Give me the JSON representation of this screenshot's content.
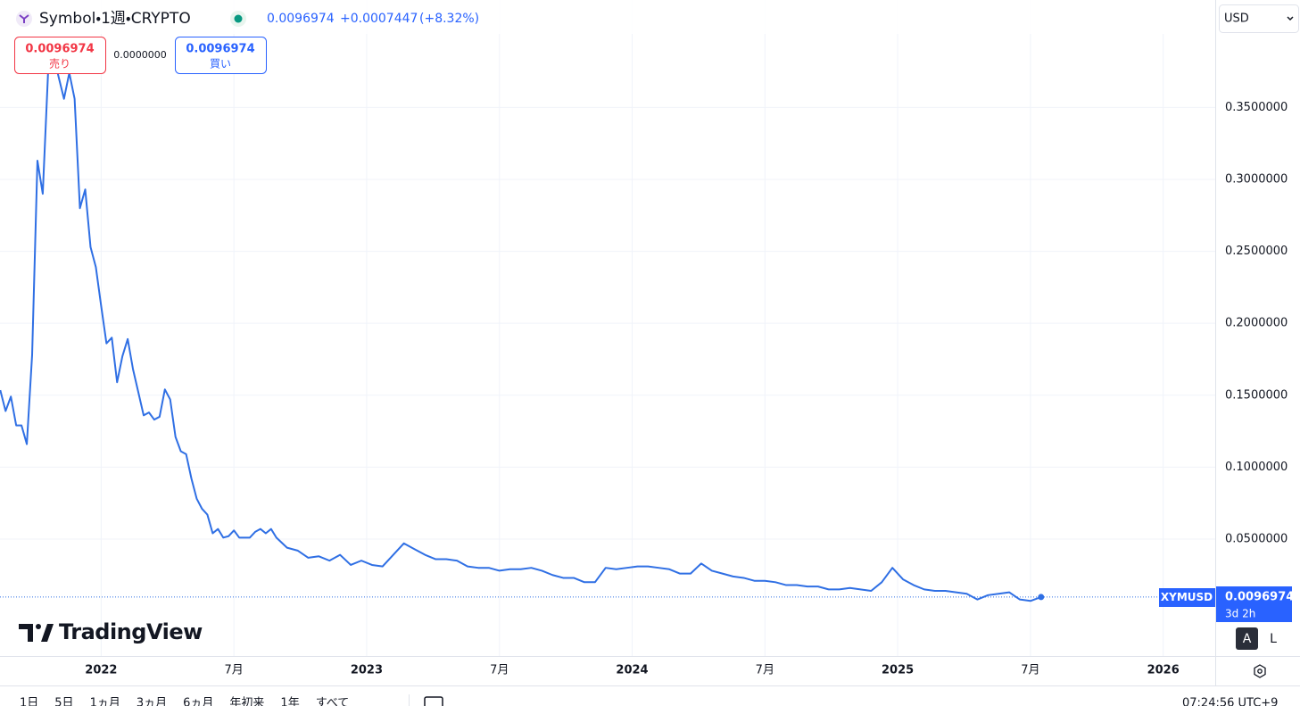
{
  "header": {
    "symbol": "Symbol・1週・CRYPTO",
    "price": "0.0096974",
    "change": "+0.0007447",
    "change_pct": "(+8.32%)"
  },
  "trade": {
    "sell_price": "0.0096974",
    "sell_label": "売り",
    "spread": "0.0000000",
    "buy_price": "0.0096974",
    "buy_label": "買い"
  },
  "currency": "USD",
  "logo": "TradingView",
  "last_price": {
    "ticker": "XYMUSD",
    "price": "0.0096974",
    "countdown": "3d 2h"
  },
  "scale_buttons": [
    "A",
    "L"
  ],
  "ranges": [
    "1日",
    "5日",
    "1ヵ月",
    "3ヵ月",
    "6ヵ月",
    "年初来",
    "1年",
    "すべて"
  ],
  "clock": "07:24:56 UTC+9",
  "chart_data": {
    "type": "line",
    "x": [
      2021.62,
      2021.64,
      2021.66,
      2021.68,
      2021.7,
      2021.72,
      2021.74,
      2021.76,
      2021.78,
      2021.8,
      2021.82,
      2021.84,
      2021.86,
      2021.88,
      2021.9,
      2021.92,
      2021.94,
      2021.96,
      2021.98,
      2022.0,
      2022.02,
      2022.04,
      2022.06,
      2022.08,
      2022.1,
      2022.12,
      2022.14,
      2022.16,
      2022.18,
      2022.2,
      2022.22,
      2022.24,
      2022.26,
      2022.28,
      2022.3,
      2022.32,
      2022.34,
      2022.36,
      2022.38,
      2022.4,
      2022.42,
      2022.44,
      2022.46,
      2022.48,
      2022.5,
      2022.52,
      2022.54,
      2022.56,
      2022.58,
      2022.6,
      2022.62,
      2022.64,
      2022.66,
      2022.7,
      2022.74,
      2022.78,
      2022.82,
      2022.86,
      2022.9,
      2022.94,
      2022.98,
      2023.02,
      2023.06,
      2023.1,
      2023.14,
      2023.18,
      2023.22,
      2023.26,
      2023.3,
      2023.34,
      2023.38,
      2023.42,
      2023.46,
      2023.5,
      2023.54,
      2023.58,
      2023.62,
      2023.66,
      2023.7,
      2023.74,
      2023.78,
      2023.82,
      2023.86,
      2023.9,
      2023.94,
      2023.98,
      2024.02,
      2024.06,
      2024.1,
      2024.14,
      2024.18,
      2024.22,
      2024.26,
      2024.3,
      2024.34,
      2024.38,
      2024.42,
      2024.46,
      2024.5,
      2024.54,
      2024.58,
      2024.62,
      2024.66,
      2024.7,
      2024.74,
      2024.78,
      2024.82,
      2024.86,
      2024.9,
      2024.94,
      2024.98,
      2025.02,
      2025.06,
      2025.1,
      2025.14,
      2025.18,
      2025.22,
      2025.26,
      2025.3,
      2025.34,
      2025.38,
      2025.42,
      2025.46,
      2025.5,
      2025.54
    ],
    "series": [
      {
        "name": "XYMUSD",
        "color": "#2f6fe4",
        "values": [
          0.1535,
          0.139,
          0.149,
          0.129,
          0.129,
          0.116,
          0.178,
          0.313,
          0.29,
          0.374,
          0.387,
          0.371,
          0.356,
          0.374,
          0.356,
          0.28,
          0.293,
          0.253,
          0.239,
          0.212,
          0.186,
          0.19,
          0.159,
          0.177,
          0.189,
          0.168,
          0.152,
          0.136,
          0.138,
          0.133,
          0.135,
          0.154,
          0.147,
          0.121,
          0.111,
          0.109,
          0.092,
          0.078,
          0.071,
          0.067,
          0.054,
          0.057,
          0.051,
          0.052,
          0.056,
          0.051,
          0.051,
          0.051,
          0.055,
          0.057,
          0.054,
          0.057,
          0.051,
          0.044,
          0.042,
          0.037,
          0.038,
          0.035,
          0.039,
          0.032,
          0.035,
          0.032,
          0.031,
          0.039,
          0.047,
          0.043,
          0.039,
          0.036,
          0.036,
          0.035,
          0.031,
          0.03,
          0.03,
          0.028,
          0.029,
          0.029,
          0.03,
          0.028,
          0.025,
          0.023,
          0.023,
          0.02,
          0.02,
          0.03,
          0.029,
          0.03,
          0.031,
          0.031,
          0.03,
          0.029,
          0.026,
          0.026,
          0.033,
          0.028,
          0.026,
          0.024,
          0.023,
          0.021,
          0.021,
          0.02,
          0.018,
          0.018,
          0.017,
          0.017,
          0.015,
          0.015,
          0.016,
          0.015,
          0.014,
          0.02,
          0.03,
          0.022,
          0.018,
          0.015,
          0.014,
          0.014,
          0.013,
          0.012,
          0.008,
          0.011,
          0.012,
          0.013,
          0.008,
          0.007,
          0.0096974
        ]
      }
    ],
    "xlim": [
      2021.619,
      2026.196
    ],
    "xticks": [
      2022,
      {
        "value": 2022.5,
        "label": "7月"
      },
      2023,
      {
        "value": 2023.5,
        "label": "7月"
      },
      2024,
      {
        "value": 2024.5,
        "label": "7月"
      },
      2025,
      {
        "value": 2025.5,
        "label": "7月"
      },
      2026
    ],
    "ylim": [
      -0.0313,
      0.4011
    ],
    "yticks": [
      {
        "value": 0.05,
        "label": "0.0500000"
      },
      {
        "value": 0.1,
        "label": "0.1000000"
      },
      {
        "value": 0.15,
        "label": "0.1500000"
      },
      {
        "value": 0.2,
        "label": "0.2000000"
      },
      {
        "value": 0.25,
        "label": "0.2500000"
      },
      {
        "value": 0.3,
        "label": "0.3000000"
      },
      {
        "value": 0.35,
        "label": "0.3500000"
      }
    ],
    "grid": true
  }
}
